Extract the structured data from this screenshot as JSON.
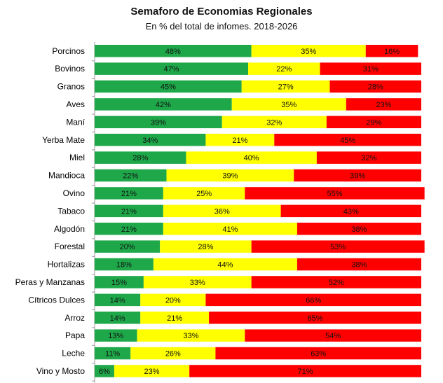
{
  "chart_data": {
    "type": "bar",
    "orientation": "horizontal",
    "stacked": true,
    "title": "Semaforo de Economias Regionales",
    "subtitle": "En % del total de infomes. 2018-2026",
    "categories": [
      "Porcinos",
      "Bovinos",
      "Granos",
      "Aves",
      "Maní",
      "Yerba Mate",
      "Miel",
      "Mandioca",
      "Ovino",
      "Tabaco",
      "Algodón",
      "Forestal",
      "Hortalizas",
      "Peras y Manzanas",
      "Cítricos Dulces",
      "Arroz",
      "Papa",
      "Leche",
      "Vino y Mosto"
    ],
    "series": [
      {
        "color": "#1ea84a",
        "values": [
          48,
          47,
          45,
          42,
          39,
          34,
          28,
          22,
          21,
          21,
          21,
          20,
          18,
          15,
          14,
          14,
          13,
          11,
          6
        ]
      },
      {
        "color": "#ffff00",
        "values": [
          35,
          22,
          27,
          35,
          32,
          21,
          40,
          39,
          25,
          36,
          41,
          28,
          44,
          33,
          20,
          21,
          33,
          26,
          23
        ]
      },
      {
        "color": "#ff0000",
        "values": [
          16,
          31,
          28,
          23,
          29,
          45,
          32,
          39,
          55,
          43,
          38,
          53,
          38,
          52,
          66,
          65,
          54,
          63,
          71
        ]
      }
    ],
    "value_suffix": "%",
    "xlim": [
      0,
      100
    ],
    "grid": false,
    "legend": "none"
  }
}
